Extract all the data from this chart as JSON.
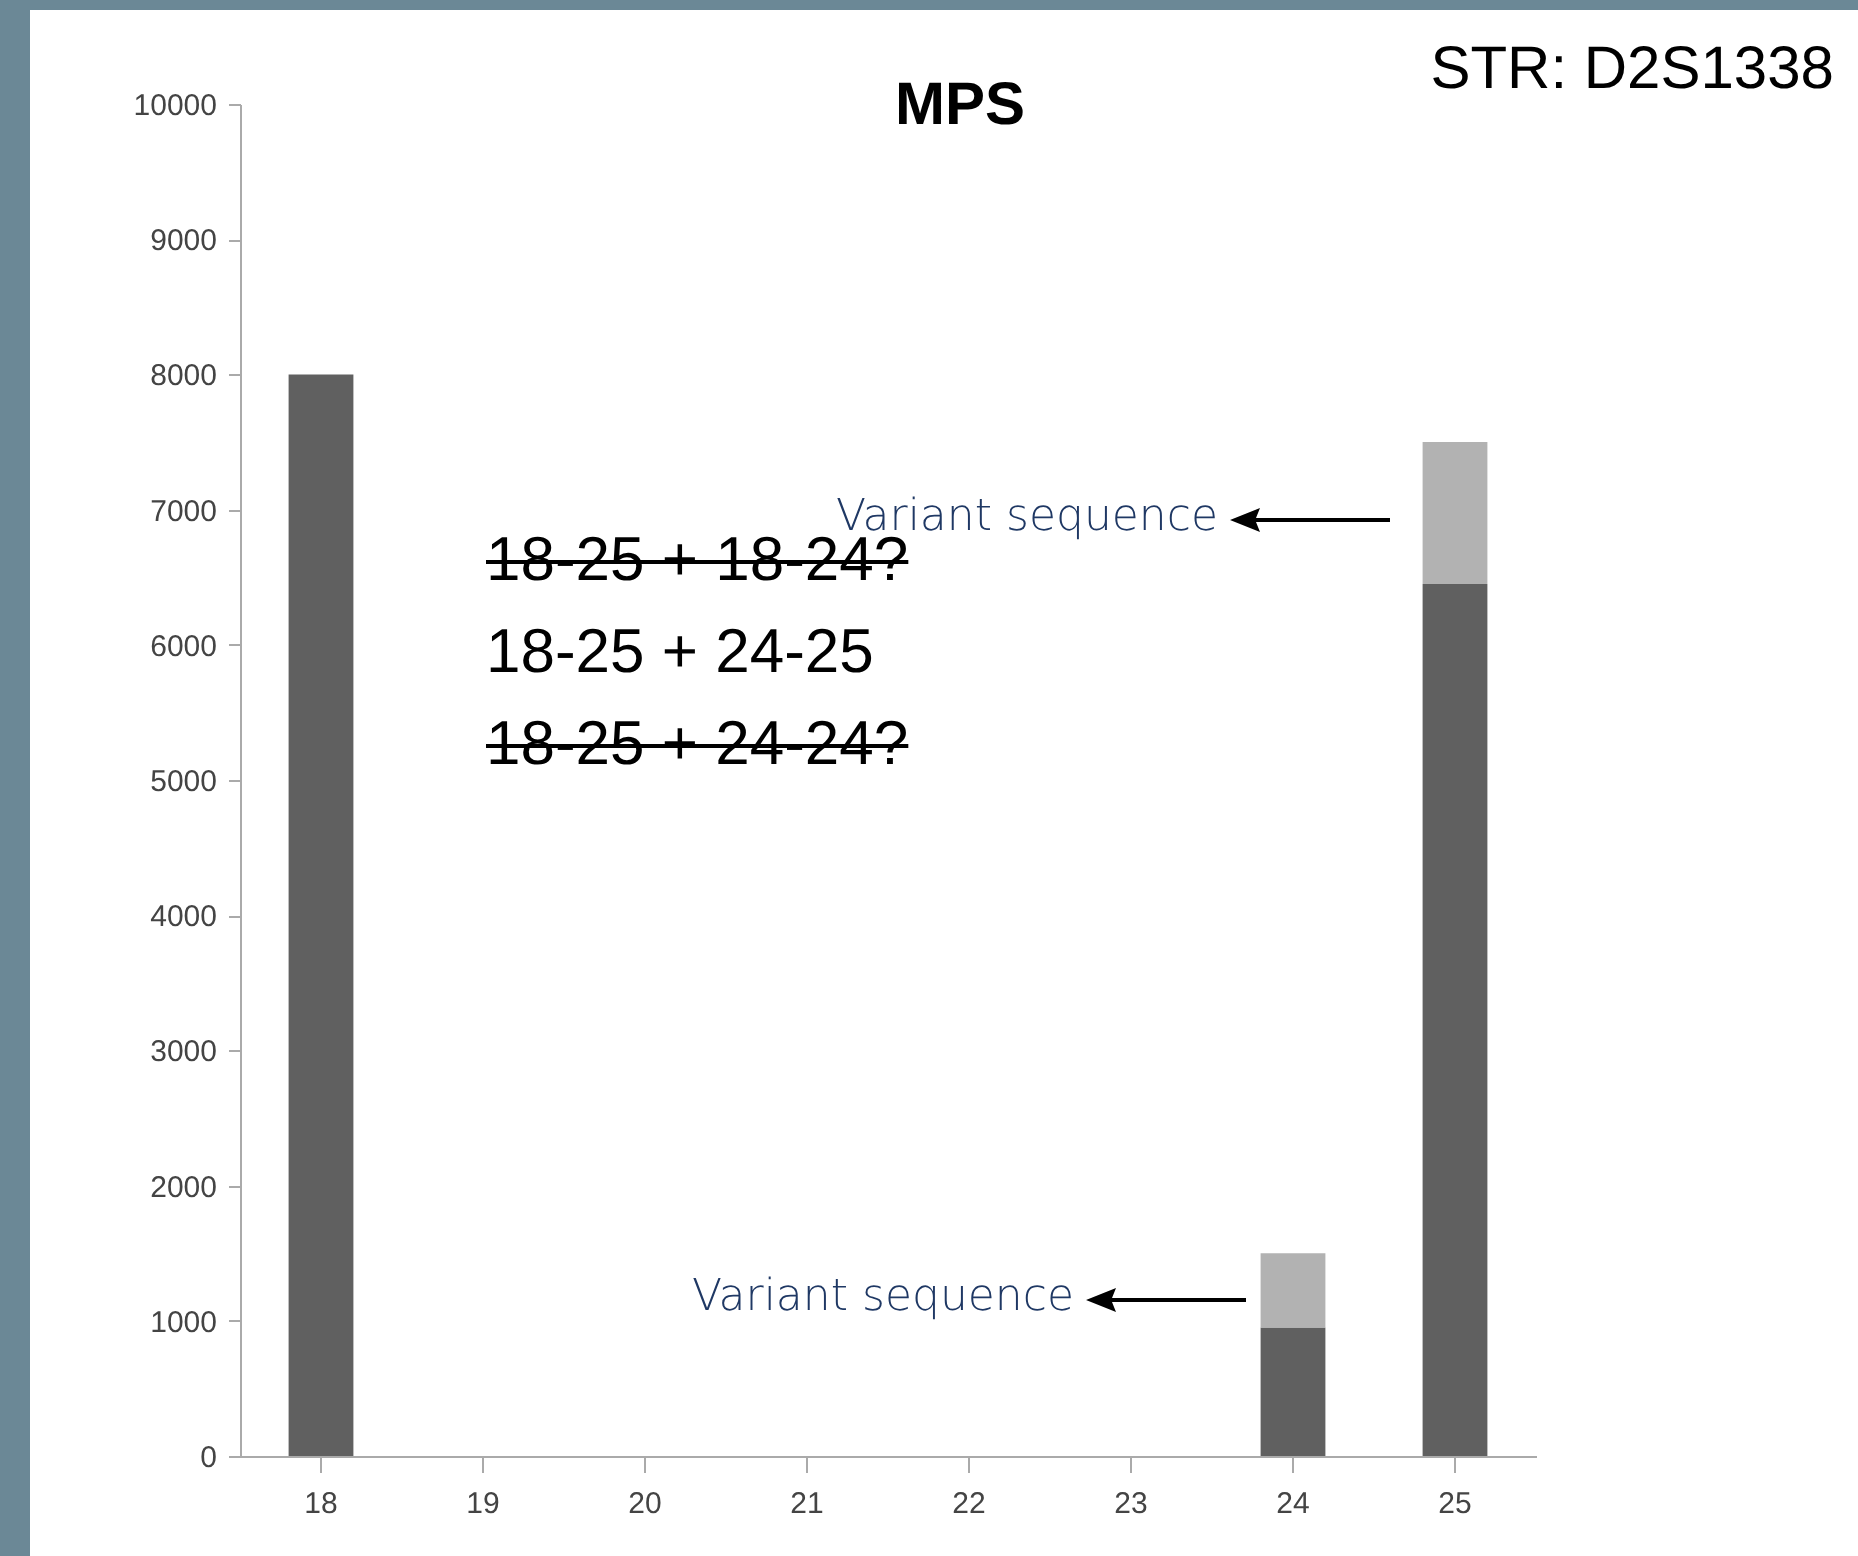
{
  "chart_data": {
    "type": "bar",
    "title": "MPS",
    "categories": [
      "18",
      "19",
      "20",
      "21",
      "22",
      "23",
      "24",
      "25"
    ],
    "series": [
      {
        "color": "#606060",
        "values": [
          8000,
          0,
          0,
          0,
          0,
          0,
          950,
          6450
        ]
      },
      {
        "color": "#b2b2b2",
        "values": [
          null,
          null,
          null,
          null,
          null,
          null,
          550,
          1050
        ]
      }
    ],
    "stacked": true,
    "ylim": [
      0,
      10000
    ],
    "yticks": [
      0,
      1000,
      2000,
      3000,
      4000,
      5000,
      6000,
      7000,
      8000,
      9000,
      10000
    ],
    "grid": false,
    "legend": false,
    "annotations": [
      "STR: D2S1338",
      "18-25 + 18-24?",
      "18-25 + 24-25",
      "18-25 + 24-24?",
      "Variant sequence",
      "Variant sequence"
    ]
  }
}
